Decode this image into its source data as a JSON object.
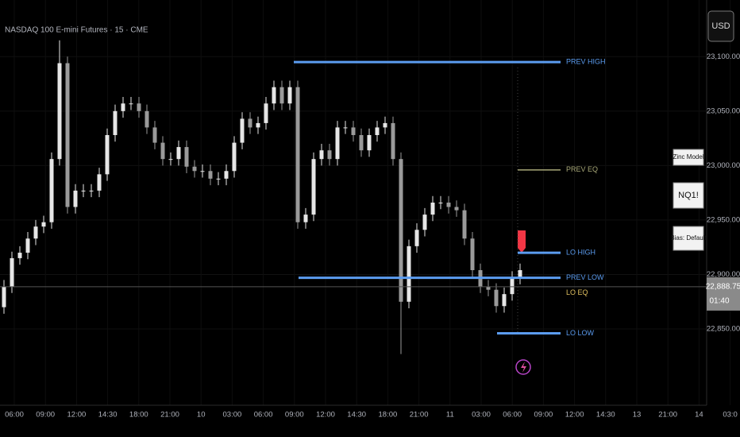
{
  "header": {
    "symbol": "NASDAQ 100 E-mini Futures · 15 · CME",
    "currency": "USD"
  },
  "chart_data": {
    "type": "candlestick",
    "ylim": [
      22780,
      23152
    ],
    "yticks": [
      {
        "value": 23100,
        "label": "23,100.00"
      },
      {
        "value": 23050,
        "label": "23,050.00"
      },
      {
        "value": 23000,
        "label": "23,000.00"
      },
      {
        "value": 22950,
        "label": "22,950.00"
      },
      {
        "value": 22900,
        "label": "22,900.00"
      },
      {
        "value": 22850,
        "label": "22,850.00"
      }
    ],
    "time_labels": [
      "06:00",
      "09:00",
      "12:00",
      "14:30",
      "18:00",
      "21:00",
      "10",
      "03:00",
      "06:00",
      "09:00",
      "12:00",
      "14:30",
      "18:00",
      "21:00",
      "11",
      "03:00",
      "06:00",
      "09:00",
      "12:00",
      "14:30",
      "13",
      "21:00",
      "14",
      "03:0"
    ],
    "up_color": "#e6e6e6",
    "down_color": "#9a9a9a",
    "open": [
      22870,
      22889,
      22915,
      22920,
      22933,
      22944,
      22948,
      23006,
      23094,
      22962,
      22977,
      22977,
      22977,
      22992,
      23028,
      23050,
      23057,
      23057,
      23050,
      23035,
      23021,
      23006,
      23006,
      23017,
      22999,
      22995,
      22995,
      22988,
      22988,
      22995,
      23021,
      23043,
      23035,
      23039,
      23057,
      23072,
      23057,
      23072,
      22948,
      22955,
      23006,
      23014,
      23006,
      23035,
      23035,
      23028,
      23014,
      23028,
      23035,
      23039,
      23006,
      22875,
      22926,
      22941,
      22955,
      22966,
      22966,
      22962,
      22959,
      22933,
      22904,
      22889,
      22886,
      22871,
      22882,
      22897
    ],
    "high": [
      22895,
      22921,
      22926,
      22939,
      22950,
      22954,
      23012,
      23115,
      23100,
      22983,
      22983,
      22983,
      22998,
      23034,
      23056,
      23063,
      23063,
      23063,
      23056,
      23041,
      23027,
      23012,
      23023,
      23023,
      23005,
      23001,
      23001,
      22994,
      23001,
      23027,
      23049,
      23049,
      23045,
      23063,
      23078,
      23078,
      23078,
      23078,
      22961,
      23012,
      23020,
      23020,
      23041,
      23041,
      23041,
      23034,
      23034,
      23041,
      23045,
      23045,
      23012,
      22932,
      22947,
      22961,
      22972,
      22972,
      22972,
      22968,
      22965,
      22939,
      22910,
      22895,
      22892,
      22888,
      22903,
      22910
    ],
    "low": [
      22864,
      22883,
      22909,
      22914,
      22927,
      22938,
      22942,
      23000,
      22956,
      22956,
      22971,
      22971,
      22971,
      22986,
      23022,
      23044,
      23051,
      23044,
      23029,
      23015,
      23000,
      23000,
      23000,
      22993,
      22989,
      22989,
      22982,
      22982,
      22982,
      22989,
      23015,
      23029,
      23029,
      23033,
      23051,
      23051,
      23051,
      22942,
      22942,
      22949,
      23000,
      23000,
      23000,
      23029,
      23022,
      23008,
      23008,
      23022,
      23029,
      23000,
      22827,
      22869,
      22920,
      22935,
      22949,
      22960,
      22956,
      22953,
      22927,
      22898,
      22883,
      22880,
      22865,
      22865,
      22876,
      22891
    ],
    "close": [
      22889,
      22915,
      22920,
      22933,
      22944,
      22948,
      23006,
      23094,
      22962,
      22977,
      22977,
      22977,
      22992,
      23028,
      23050,
      23057,
      23057,
      23050,
      23035,
      23021,
      23006,
      23006,
      23017,
      22999,
      22995,
      22995,
      22988,
      22988,
      22995,
      23021,
      23043,
      23035,
      23039,
      23057,
      23072,
      23057,
      23072,
      22948,
      22955,
      23006,
      23014,
      23006,
      23035,
      23035,
      23028,
      23014,
      23028,
      23035,
      23039,
      23006,
      22875,
      22926,
      22941,
      22955,
      22966,
      22966,
      22962,
      22959,
      22933,
      22904,
      22889,
      22886,
      22871,
      22882,
      22897,
      22904
    ],
    "levels": [
      {
        "name": "PREV HIGH",
        "value": 23095,
        "color": "#5b9cf0"
      },
      {
        "name": "PREV EQ",
        "value": 22996,
        "color": "#a8a878"
      },
      {
        "name": "LO HIGH",
        "value": 22920,
        "color": "#5b9cf0"
      },
      {
        "name": "PREV LOW",
        "value": 22897,
        "color": "#5b9cf0"
      },
      {
        "name": "LO EQ",
        "value": 22883,
        "color": "#e0c060"
      },
      {
        "name": "LO LOW",
        "value": 22846,
        "color": "#5b9cf0"
      }
    ],
    "last_price": 22888.75,
    "last_price_label": "22,888.75",
    "countdown": "01:40"
  },
  "widgets": [
    "Zinc Model",
    "NQ1!",
    "Bias: Default"
  ]
}
